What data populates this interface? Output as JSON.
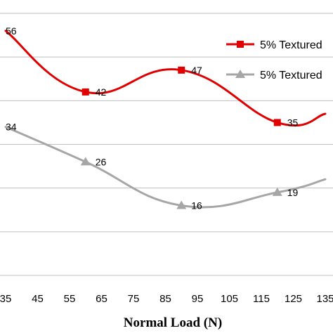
{
  "chart_data": {
    "type": "line",
    "xlabel": "Normal Load (N)",
    "x_ticks": [
      "35",
      "45",
      "55",
      "65",
      "75",
      "85",
      "95",
      "105",
      "115",
      "125",
      "135"
    ],
    "xlim": [
      35,
      135
    ],
    "ylim": [
      0,
      60
    ],
    "gridlines": [
      0,
      10,
      20,
      30,
      40,
      50,
      60
    ],
    "grid": true,
    "legend_position": "top-right",
    "series": [
      {
        "name": "5% Textured",
        "color": "#e00000",
        "marker": "square",
        "x": [
          35,
          60,
          90,
          120,
          135
        ],
        "y": [
          56,
          42,
          47,
          35,
          37
        ],
        "labels": [
          "56",
          "42",
          "47",
          "35",
          ""
        ]
      },
      {
        "name": "5% Textured",
        "color": "#a6a6a6",
        "marker": "triangle",
        "x": [
          35,
          60,
          90,
          120,
          135
        ],
        "y": [
          34,
          26,
          16,
          19,
          22
        ],
        "labels": [
          "34",
          "26",
          "16",
          "19",
          ""
        ]
      }
    ]
  }
}
